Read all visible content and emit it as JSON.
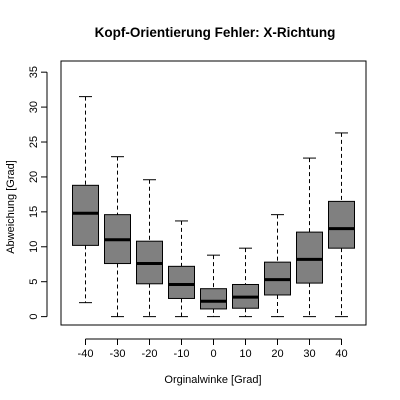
{
  "chart_data": {
    "type": "boxplot",
    "title": "Kopf-Orientierung Fehler: X-Richtung",
    "xlabel": "Orginalwinke [Grad]",
    "ylabel": "Abweichung [Grad]",
    "categories": [
      "-40",
      "-30",
      "-20",
      "-10",
      "0",
      "10",
      "20",
      "30",
      "40"
    ],
    "yticks": [
      "0",
      "5",
      "10",
      "15",
      "20",
      "25",
      "30",
      "35"
    ],
    "ylim": [
      -1.2,
      36.6
    ],
    "grid": false,
    "legend": "none",
    "boxes": [
      {
        "category": "-40",
        "whisker_low": 2.0,
        "q1": 10.2,
        "median": 14.8,
        "q3": 18.8,
        "whisker_high": 31.5
      },
      {
        "category": "-30",
        "whisker_low": 0.0,
        "q1": 7.6,
        "median": 11.0,
        "q3": 14.6,
        "whisker_high": 22.9
      },
      {
        "category": "-20",
        "whisker_low": 0.0,
        "q1": 4.7,
        "median": 7.6,
        "q3": 10.8,
        "whisker_high": 19.6
      },
      {
        "category": "-10",
        "whisker_low": 0.0,
        "q1": 2.6,
        "median": 4.6,
        "q3": 7.2,
        "whisker_high": 13.7
      },
      {
        "category": "0",
        "whisker_low": 0.0,
        "q1": 1.1,
        "median": 2.2,
        "q3": 4.0,
        "whisker_high": 8.8
      },
      {
        "category": "10",
        "whisker_low": 0.0,
        "q1": 1.2,
        "median": 2.8,
        "q3": 4.6,
        "whisker_high": 9.8
      },
      {
        "category": "20",
        "whisker_low": 0.0,
        "q1": 3.1,
        "median": 5.3,
        "q3": 7.8,
        "whisker_high": 14.6
      },
      {
        "category": "30",
        "whisker_low": 0.0,
        "q1": 4.8,
        "median": 8.2,
        "q3": 12.1,
        "whisker_high": 22.7
      },
      {
        "category": "40",
        "whisker_low": 0.0,
        "q1": 9.8,
        "median": 12.6,
        "q3": 16.5,
        "whisker_high": 26.3
      }
    ],
    "colors": {
      "box_fill": "#808080",
      "stroke": "#000000"
    }
  }
}
